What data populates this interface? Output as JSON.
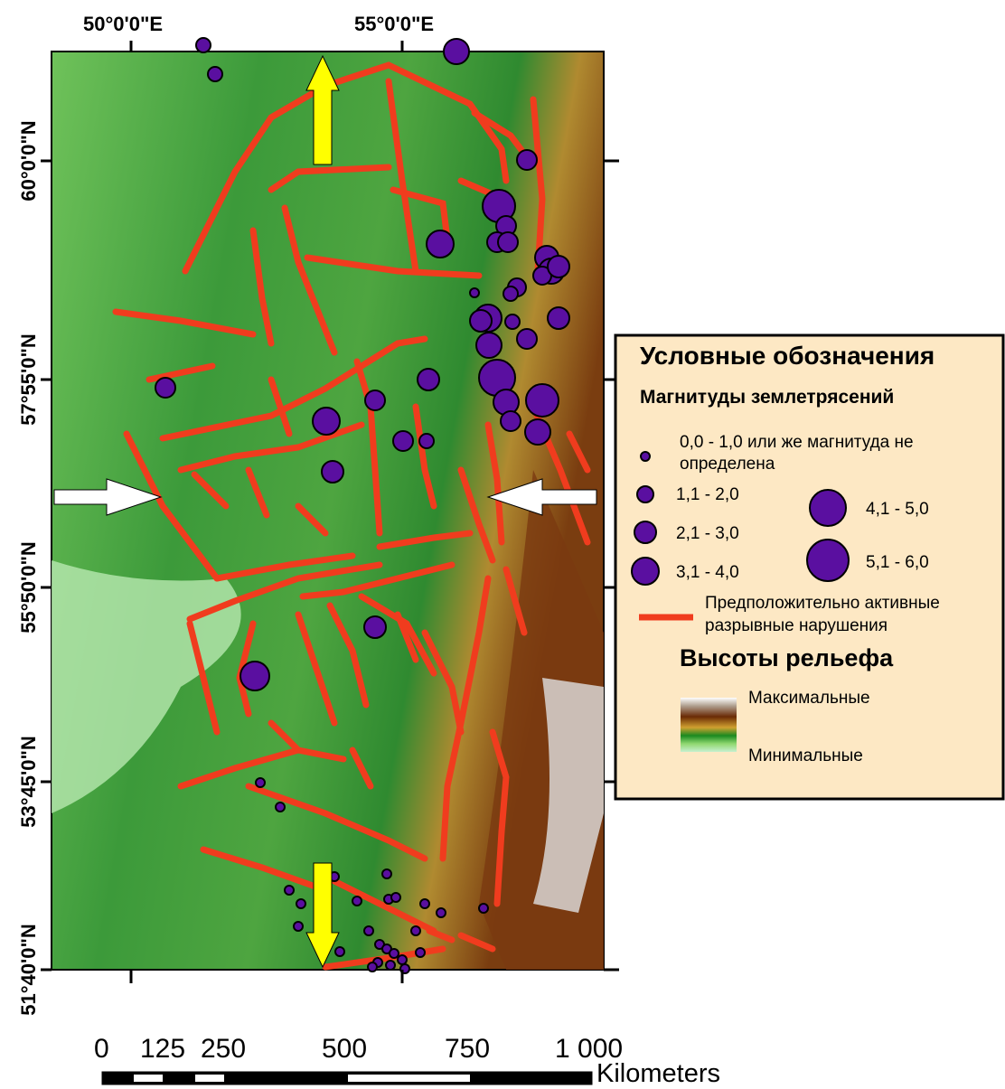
{
  "map": {
    "longitude_labels": [
      "50°0'0\"E",
      "55°0'0\"E"
    ],
    "latitude_labels": [
      "60°0'0\"N",
      "57°55'0\"N",
      "55°50'0\"N",
      "53°45'0\"N",
      "51°40'0\"N"
    ],
    "legend": {
      "title": "Условные обозначения",
      "magnitude_title": "Магнитуды землетрясений",
      "magnitude_classes": [
        "0,0 - 1,0 или же магнитуда не определена",
        "1,1 - 2,0",
        "2,1 - 3,0",
        "3,1 - 4,0",
        "4,1 - 5,0",
        "5,1 - 6,0"
      ],
      "fault_label": "Предположительно активные разрывные нарушения",
      "relief_title": "Высоты рельефа",
      "relief_max": "Максимальные",
      "relief_min": "Минимальные"
    },
    "scale_bar": {
      "labels": [
        "0",
        "125",
        "250",
        "500",
        "750",
        "1 000"
      ],
      "unit": "Kilometers"
    }
  }
}
